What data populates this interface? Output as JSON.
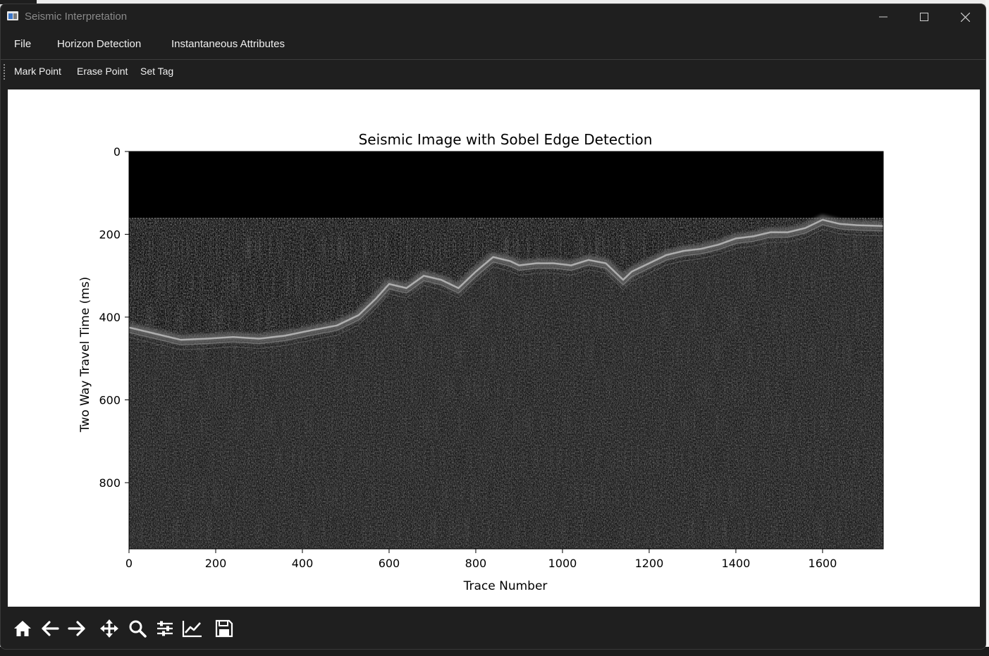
{
  "window": {
    "title": "Seismic Interpretation",
    "controls": [
      "minimize",
      "maximize",
      "close"
    ]
  },
  "menu": {
    "items": [
      "File",
      "Horizon Detection",
      "Instantaneous Attributes"
    ]
  },
  "toolbar": {
    "items": [
      "Mark Point",
      "Erase Point",
      "Set Tag"
    ]
  },
  "chart_data": {
    "type": "heatmap",
    "title": "Seismic Image with Sobel Edge Detection",
    "xlabel": "Trace Number",
    "ylabel": "Two Way Travel Time (ms)",
    "xlim": [
      0,
      1740
    ],
    "ylim": [
      960,
      0
    ],
    "y_inverted": true,
    "xticks": [
      0,
      200,
      400,
      600,
      800,
      1000,
      1200,
      1400,
      1600
    ],
    "yticks": [
      0,
      200,
      400,
      600,
      800
    ],
    "colormap": "gray",
    "blank_top_ms": 160,
    "horizon": {
      "trace": [
        0,
        60,
        120,
        180,
        240,
        300,
        360,
        420,
        480,
        530,
        570,
        600,
        640,
        680,
        720,
        760,
        800,
        840,
        880,
        900,
        940,
        980,
        1020,
        1060,
        1100,
        1140,
        1160,
        1200,
        1240,
        1280,
        1320,
        1360,
        1400,
        1440,
        1480,
        1520,
        1560,
        1600,
        1640,
        1680,
        1740
      ],
      "twt_ms": [
        425,
        440,
        455,
        452,
        448,
        452,
        445,
        432,
        420,
        395,
        355,
        320,
        330,
        300,
        310,
        330,
        290,
        255,
        265,
        275,
        270,
        270,
        275,
        262,
        270,
        310,
        290,
        270,
        250,
        240,
        235,
        225,
        210,
        205,
        195,
        195,
        185,
        165,
        175,
        178,
        180
      ]
    }
  },
  "nav_toolbar": {
    "buttons": [
      "home-icon",
      "back-arrow-icon",
      "forward-arrow-icon",
      "pan-move-icon",
      "zoom-magnifier-icon",
      "configure-subplots-icon",
      "edit-axis-line-icon",
      "save-floppy-icon"
    ]
  }
}
